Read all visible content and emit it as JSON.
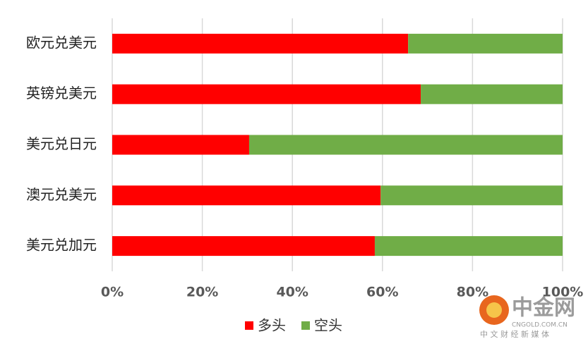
{
  "chart_data": {
    "type": "bar",
    "orientation": "horizontal",
    "stacked": true,
    "categories": [
      "欧元兑美元",
      "英镑兑美元",
      "美元兑日元",
      "澳元兑美元",
      "美元兑加元"
    ],
    "series": [
      {
        "name": "多头",
        "color": "#ff0000",
        "values": [
          65.7,
          68.5,
          30.4,
          59.6,
          58.3
        ]
      },
      {
        "name": "空头",
        "color": "#70ad47",
        "values": [
          34.3,
          31.5,
          69.6,
          40.4,
          41.7
        ]
      }
    ],
    "xlim": [
      0,
      100
    ],
    "xticks": [
      {
        "value": 0,
        "label": "0%"
      },
      {
        "value": 20,
        "label": "20%"
      },
      {
        "value": 40,
        "label": "40%"
      },
      {
        "value": 60,
        "label": "60%"
      },
      {
        "value": 80,
        "label": "80%"
      },
      {
        "value": 100,
        "label": "100%"
      }
    ],
    "grid": true,
    "legend": "bottom"
  },
  "watermark": {
    "name": "中金网",
    "url": "CNGOLD.COM.CN",
    "slogan": "中 文 财 经 新 媒 体"
  }
}
